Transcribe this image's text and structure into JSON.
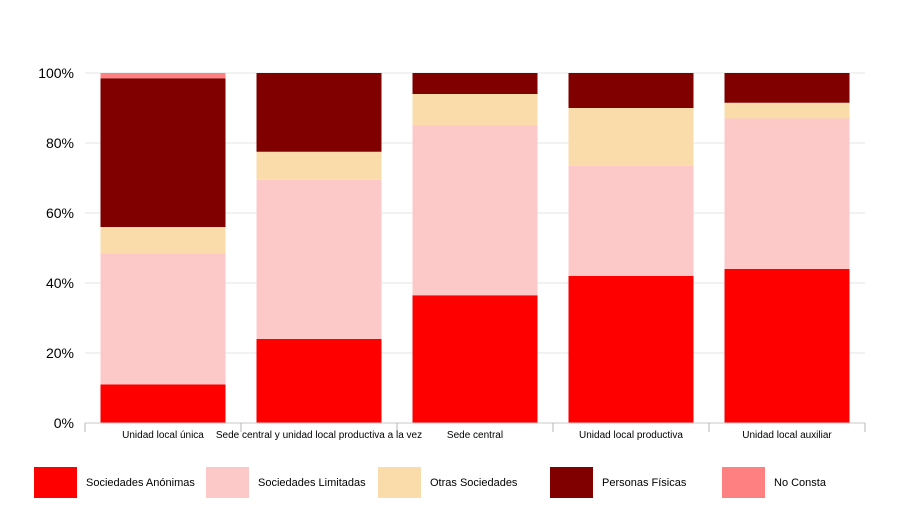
{
  "chart_data": {
    "type": "bar",
    "stacked": true,
    "normalized": true,
    "categories": [
      "Unidad local única",
      "Sede central y unidad local productiva a la vez",
      "Sede central",
      "Unidad local productiva",
      "Unidad local auxiliar"
    ],
    "series": [
      {
        "name": "Sociedades Anónimas",
        "color": "#ff0000",
        "values": [
          11,
          24,
          36.5,
          42,
          44
        ]
      },
      {
        "name": "Sociedades Limitadas",
        "color": "#fcc8c8",
        "values": [
          37.5,
          45.5,
          48.5,
          31.5,
          43
        ]
      },
      {
        "name": "Otras Sociedades",
        "color": "#fadcaa",
        "values": [
          7.5,
          8,
          9,
          16.5,
          4.5
        ]
      },
      {
        "name": "Personas Físicas",
        "color": "#800000",
        "values": [
          42.5,
          22.5,
          6,
          10,
          8.5
        ]
      },
      {
        "name": "No Consta",
        "color": "#ff8080",
        "values": [
          1.5,
          0,
          0,
          0,
          0
        ]
      }
    ],
    "ylim": [
      0,
      100
    ],
    "yticks": [
      "0%",
      "20%",
      "40%",
      "60%",
      "80%",
      "100%"
    ],
    "grid": true,
    "legend_position": "bottom"
  }
}
